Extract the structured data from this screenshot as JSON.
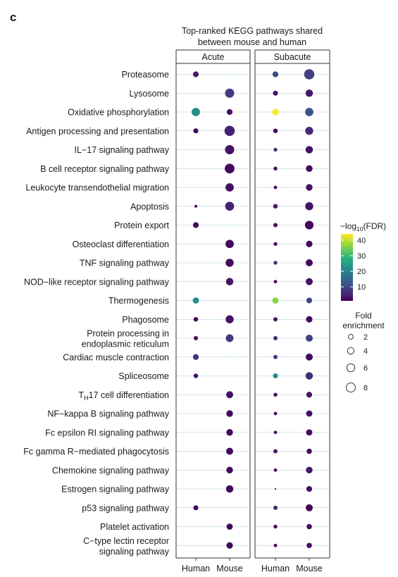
{
  "panel_label": "c",
  "chart_data": {
    "type": "scatter",
    "title": "Top-ranked KEGG pathways shared",
    "subtitle": "between mouse and human",
    "facets": [
      "Acute",
      "Subacute"
    ],
    "x_categories": [
      "Human",
      "Mouse"
    ],
    "pathways": [
      "Proteasome",
      "Lysosome",
      "Oxidative phosphorylation",
      "Antigen processing and presentation",
      "IL−17 signaling pathway",
      "B cell receptor signaling pathway",
      "Leukocyte transendothelial migration",
      "Apoptosis",
      "Protein export",
      "Osteoclast differentiation",
      "TNF signaling pathway",
      "NOD−like receptor signaling pathway",
      "Thermogenesis",
      "Phagosome",
      [
        "Protein processing in",
        "endoplasmic reticulum"
      ],
      "Cardiac muscle contraction",
      "Spliceosome",
      "TH17 cell differentiation",
      "NF−kappa B signaling pathway",
      "Fc epsilon RI signaling pathway",
      "Fc gamma R−mediated phagocytosis",
      "Chemokine signaling pathway",
      "Estrogen signaling pathway",
      "p53 signaling pathway",
      "Platelet activation",
      [
        "C−type lectin receptor",
        "signaling pathway"
      ]
    ],
    "color_legend": {
      "title": "−log10(FDR)",
      "ticks": [
        10,
        20,
        30,
        40
      ],
      "range": [
        1,
        44
      ],
      "colormap": "viridis"
    },
    "size_legend": {
      "title": [
        "Fold",
        "enrichment"
      ],
      "values": [
        2,
        4,
        6,
        8
      ]
    },
    "points": [
      {
        "pathway": 0,
        "facet": "Acute",
        "x": "Human",
        "fold": 3,
        "logfdr": 4
      },
      {
        "pathway": 0,
        "facet": "Subacute",
        "x": "Human",
        "fold": 3,
        "logfdr": 10
      },
      {
        "pathway": 0,
        "facet": "Subacute",
        "x": "Mouse",
        "fold": 10,
        "logfdr": 9
      },
      {
        "pathway": 1,
        "facet": "Acute",
        "x": "Mouse",
        "fold": 8,
        "logfdr": 8
      },
      {
        "pathway": 1,
        "facet": "Subacute",
        "x": "Human",
        "fold": 2.2,
        "logfdr": 3
      },
      {
        "pathway": 1,
        "facet": "Subacute",
        "x": "Mouse",
        "fold": 5,
        "logfdr": 4
      },
      {
        "pathway": 2,
        "facet": "Acute",
        "x": "Human",
        "fold": 6.5,
        "logfdr": 22
      },
      {
        "pathway": 2,
        "facet": "Acute",
        "x": "Mouse",
        "fold": 3,
        "logfdr": 3
      },
      {
        "pathway": 2,
        "facet": "Subacute",
        "x": "Human",
        "fold": 3.8,
        "logfdr": 44
      },
      {
        "pathway": 2,
        "facet": "Subacute",
        "x": "Mouse",
        "fold": 6.5,
        "logfdr": 12
      },
      {
        "pathway": 3,
        "facet": "Acute",
        "x": "Human",
        "fold": 2.2,
        "logfdr": 2
      },
      {
        "pathway": 3,
        "facet": "Acute",
        "x": "Mouse",
        "fold": 10,
        "logfdr": 5
      },
      {
        "pathway": 3,
        "facet": "Subacute",
        "x": "Human",
        "fold": 1.8,
        "logfdr": 2
      },
      {
        "pathway": 3,
        "facet": "Subacute",
        "x": "Mouse",
        "fold": 6,
        "logfdr": 6
      },
      {
        "pathway": 4,
        "facet": "Acute",
        "x": "Mouse",
        "fold": 8,
        "logfdr": 3
      },
      {
        "pathway": 4,
        "facet": "Subacute",
        "x": "Human",
        "fold": 1.2,
        "logfdr": 7
      },
      {
        "pathway": 4,
        "facet": "Subacute",
        "x": "Mouse",
        "fold": 5,
        "logfdr": 3
      },
      {
        "pathway": 5,
        "facet": "Acute",
        "x": "Mouse",
        "fold": 9,
        "logfdr": 2
      },
      {
        "pathway": 5,
        "facet": "Subacute",
        "x": "Human",
        "fold": 1.2,
        "logfdr": 2
      },
      {
        "pathway": 5,
        "facet": "Subacute",
        "x": "Mouse",
        "fold": 4,
        "logfdr": 2
      },
      {
        "pathway": 6,
        "facet": "Acute",
        "x": "Mouse",
        "fold": 6.5,
        "logfdr": 3
      },
      {
        "pathway": 6,
        "facet": "Subacute",
        "x": "Human",
        "fold": 0.9,
        "logfdr": 2
      },
      {
        "pathway": 6,
        "facet": "Subacute",
        "x": "Mouse",
        "fold": 4,
        "logfdr": 3
      },
      {
        "pathway": 7,
        "facet": "Acute",
        "x": "Human",
        "fold": 0.6,
        "logfdr": 2
      },
      {
        "pathway": 7,
        "facet": "Acute",
        "x": "Mouse",
        "fold": 7.5,
        "logfdr": 5
      },
      {
        "pathway": 7,
        "facet": "Subacute",
        "x": "Human",
        "fold": 1.8,
        "logfdr": 4
      },
      {
        "pathway": 7,
        "facet": "Subacute",
        "x": "Mouse",
        "fold": 6,
        "logfdr": 3
      },
      {
        "pathway": 8,
        "facet": "Acute",
        "x": "Human",
        "fold": 3,
        "logfdr": 2
      },
      {
        "pathway": 8,
        "facet": "Subacute",
        "x": "Human",
        "fold": 1.5,
        "logfdr": 2
      },
      {
        "pathway": 8,
        "facet": "Subacute",
        "x": "Mouse",
        "fold": 7,
        "logfdr": 2
      },
      {
        "pathway": 9,
        "facet": "Acute",
        "x": "Mouse",
        "fold": 6.5,
        "logfdr": 2
      },
      {
        "pathway": 9,
        "facet": "Subacute",
        "x": "Human",
        "fold": 1.2,
        "logfdr": 3
      },
      {
        "pathway": 9,
        "facet": "Subacute",
        "x": "Mouse",
        "fold": 3.8,
        "logfdr": 2
      },
      {
        "pathway": 10,
        "facet": "Acute",
        "x": "Mouse",
        "fold": 6,
        "logfdr": 2
      },
      {
        "pathway": 10,
        "facet": "Subacute",
        "x": "Human",
        "fold": 1.2,
        "logfdr": 6
      },
      {
        "pathway": 10,
        "facet": "Subacute",
        "x": "Mouse",
        "fold": 4.5,
        "logfdr": 2
      },
      {
        "pathway": 11,
        "facet": "Acute",
        "x": "Mouse",
        "fold": 5,
        "logfdr": 3
      },
      {
        "pathway": 11,
        "facet": "Subacute",
        "x": "Human",
        "fold": 0.9,
        "logfdr": 2
      },
      {
        "pathway": 11,
        "facet": "Subacute",
        "x": "Mouse",
        "fold": 4.5,
        "logfdr": 3
      },
      {
        "pathway": 12,
        "facet": "Acute",
        "x": "Human",
        "fold": 3.5,
        "logfdr": 22
      },
      {
        "pathway": 12,
        "facet": "Subacute",
        "x": "Human",
        "fold": 3.5,
        "logfdr": 36
      },
      {
        "pathway": 12,
        "facet": "Subacute",
        "x": "Mouse",
        "fold": 3,
        "logfdr": 10
      },
      {
        "pathway": 13,
        "facet": "Acute",
        "x": "Human",
        "fold": 1.8,
        "logfdr": 2
      },
      {
        "pathway": 13,
        "facet": "Acute",
        "x": "Mouse",
        "fold": 6,
        "logfdr": 3
      },
      {
        "pathway": 13,
        "facet": "Subacute",
        "x": "Human",
        "fold": 1.5,
        "logfdr": 3
      },
      {
        "pathway": 13,
        "facet": "Subacute",
        "x": "Mouse",
        "fold": 3.8,
        "logfdr": 2
      },
      {
        "pathway": 14,
        "facet": "Acute",
        "x": "Human",
        "fold": 1.5,
        "logfdr": 2
      },
      {
        "pathway": 14,
        "facet": "Acute",
        "x": "Mouse",
        "fold": 5.5,
        "logfdr": 8
      },
      {
        "pathway": 14,
        "facet": "Subacute",
        "x": "Human",
        "fold": 1.5,
        "logfdr": 6
      },
      {
        "pathway": 14,
        "facet": "Subacute",
        "x": "Mouse",
        "fold": 4.5,
        "logfdr": 9
      },
      {
        "pathway": 15,
        "facet": "Acute",
        "x": "Human",
        "fold": 3,
        "logfdr": 7
      },
      {
        "pathway": 15,
        "facet": "Subacute",
        "x": "Human",
        "fold": 1.5,
        "logfdr": 8
      },
      {
        "pathway": 15,
        "facet": "Subacute",
        "x": "Mouse",
        "fold": 4.5,
        "logfdr": 2
      },
      {
        "pathway": 16,
        "facet": "Acute",
        "x": "Human",
        "fold": 1.8,
        "logfdr": 3
      },
      {
        "pathway": 16,
        "facet": "Subacute",
        "x": "Human",
        "fold": 2.2,
        "logfdr": 22
      },
      {
        "pathway": 16,
        "facet": "Subacute",
        "x": "Mouse",
        "fold": 5,
        "logfdr": 6
      },
      {
        "pathway": 17,
        "facet": "Acute",
        "x": "Mouse",
        "fold": 4.5,
        "logfdr": 3
      },
      {
        "pathway": 17,
        "facet": "Subacute",
        "x": "Human",
        "fold": 1.2,
        "logfdr": 2
      },
      {
        "pathway": 17,
        "facet": "Subacute",
        "x": "Mouse",
        "fold": 3,
        "logfdr": 3
      },
      {
        "pathway": 18,
        "facet": "Acute",
        "x": "Mouse",
        "fold": 4,
        "logfdr": 2
      },
      {
        "pathway": 18,
        "facet": "Subacute",
        "x": "Human",
        "fold": 0.9,
        "logfdr": 2
      },
      {
        "pathway": 18,
        "facet": "Subacute",
        "x": "Mouse",
        "fold": 3.5,
        "logfdr": 3
      },
      {
        "pathway": 19,
        "facet": "Acute",
        "x": "Mouse",
        "fold": 4,
        "logfdr": 2
      },
      {
        "pathway": 19,
        "facet": "Subacute",
        "x": "Human",
        "fold": 0.9,
        "logfdr": 2
      },
      {
        "pathway": 19,
        "facet": "Subacute",
        "x": "Mouse",
        "fold": 3.5,
        "logfdr": 2
      },
      {
        "pathway": 20,
        "facet": "Acute",
        "x": "Mouse",
        "fold": 4.5,
        "logfdr": 2
      },
      {
        "pathway": 20,
        "facet": "Subacute",
        "x": "Human",
        "fold": 1.5,
        "logfdr": 4
      },
      {
        "pathway": 20,
        "facet": "Subacute",
        "x": "Mouse",
        "fold": 2.5,
        "logfdr": 2
      },
      {
        "pathway": 21,
        "facet": "Acute",
        "x": "Mouse",
        "fold": 4,
        "logfdr": 2
      },
      {
        "pathway": 21,
        "facet": "Subacute",
        "x": "Human",
        "fold": 0.9,
        "logfdr": 2
      },
      {
        "pathway": 21,
        "facet": "Subacute",
        "x": "Mouse",
        "fold": 4,
        "logfdr": 4
      },
      {
        "pathway": 22,
        "facet": "Acute",
        "x": "Mouse",
        "fold": 5,
        "logfdr": 2
      },
      {
        "pathway": 22,
        "facet": "Subacute",
        "x": "Human",
        "fold": 0.15,
        "logfdr": 2
      },
      {
        "pathway": 22,
        "facet": "Subacute",
        "x": "Mouse",
        "fold": 3,
        "logfdr": 3
      },
      {
        "pathway": 23,
        "facet": "Acute",
        "x": "Human",
        "fold": 2.2,
        "logfdr": 2
      },
      {
        "pathway": 23,
        "facet": "Subacute",
        "x": "Human",
        "fold": 1.5,
        "logfdr": 5
      },
      {
        "pathway": 23,
        "facet": "Subacute",
        "x": "Mouse",
        "fold": 4.5,
        "logfdr": 1
      },
      {
        "pathway": 24,
        "facet": "Acute",
        "x": "Mouse",
        "fold": 3.5,
        "logfdr": 2
      },
      {
        "pathway": 24,
        "facet": "Subacute",
        "x": "Human",
        "fold": 1.2,
        "logfdr": 2
      },
      {
        "pathway": 24,
        "facet": "Subacute",
        "x": "Mouse",
        "fold": 2.5,
        "logfdr": 2
      },
      {
        "pathway": 25,
        "facet": "Acute",
        "x": "Mouse",
        "fold": 3.8,
        "logfdr": 2
      },
      {
        "pathway": 25,
        "facet": "Subacute",
        "x": "Human",
        "fold": 0.9,
        "logfdr": 2
      },
      {
        "pathway": 25,
        "facet": "Subacute",
        "x": "Mouse",
        "fold": 2.5,
        "logfdr": 2
      }
    ]
  }
}
